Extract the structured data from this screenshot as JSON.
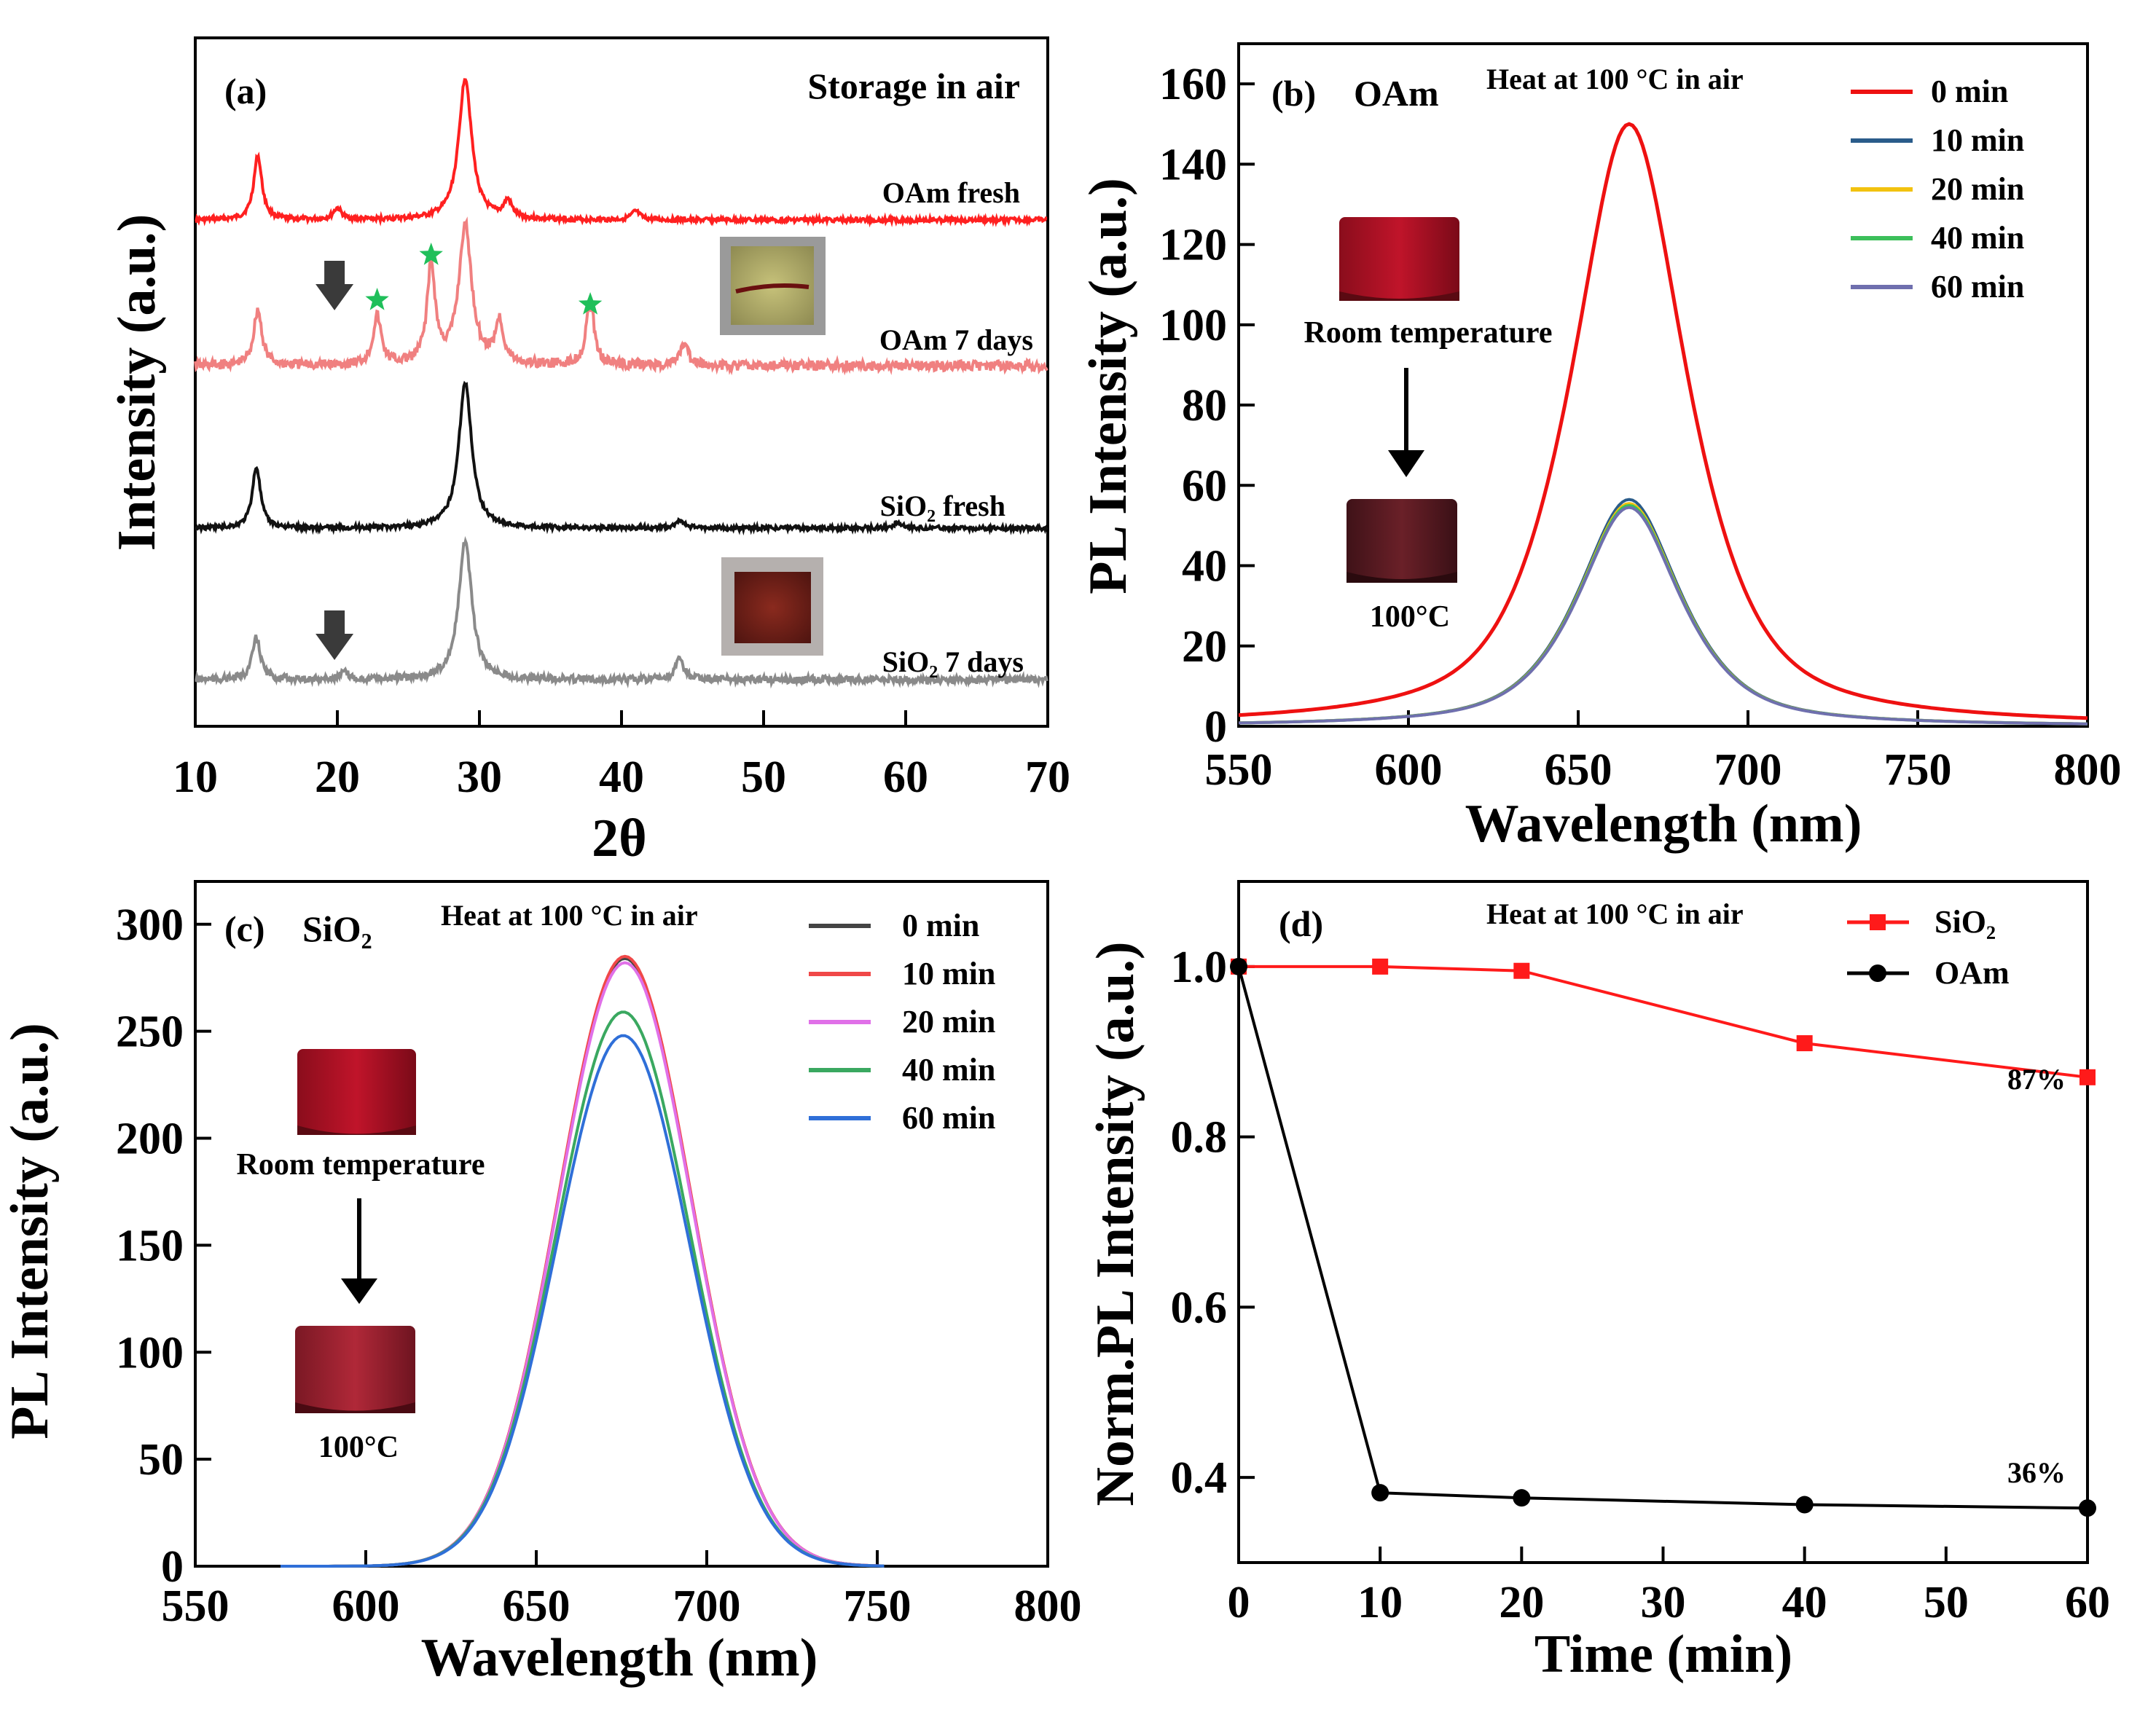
{
  "chart_data": [
    {
      "panel": "(a)",
      "type": "line",
      "title": "Storage in air",
      "xlabel": "2θ",
      "ylabel": "Intensity (a.u.)",
      "xlim": [
        10,
        70
      ],
      "xticks": [
        10,
        20,
        30,
        40,
        50,
        60,
        70
      ],
      "y_ticks_shown": false,
      "series": [
        {
          "name": "OAm fresh",
          "color": "#ff2020",
          "peaks": [
            [
              14.4,
              0.45
            ],
            [
              20.0,
              0.08
            ],
            [
              29.0,
              1.0
            ],
            [
              32.0,
              0.12
            ],
            [
              41.0,
              0.06
            ]
          ]
        },
        {
          "name": "OAm 7 days",
          "color": "#f08080",
          "peaks": [
            [
              14.4,
              0.4
            ],
            [
              22.8,
              0.35
            ],
            [
              26.6,
              0.7
            ],
            [
              29.0,
              1.0
            ],
            [
              31.4,
              0.3
            ],
            [
              37.8,
              0.45
            ],
            [
              44.4,
              0.15
            ]
          ]
        },
        {
          "name": "SiO₂ fresh",
          "color": "#111111",
          "peaks": [
            [
              14.3,
              0.42
            ],
            [
              29.0,
              1.0
            ],
            [
              44.1,
              0.05
            ],
            [
              59.5,
              0.04
            ]
          ]
        },
        {
          "name": "SiO₂ 7 days",
          "color": "#8a8a8a",
          "peaks": [
            [
              14.3,
              0.3
            ],
            [
              20.5,
              0.05
            ],
            [
              29.0,
              1.0
            ],
            [
              44.1,
              0.15
            ]
          ]
        }
      ],
      "annotations": {
        "star_positions_2theta": [
          22.8,
          26.6,
          37.8
        ],
        "arrows_2theta": [
          19.8,
          19.8
        ]
      }
    },
    {
      "panel": "(b)",
      "type": "line",
      "sample": "OAm",
      "title": "Heat at 100 °C in air",
      "xlabel": "Wavelength (nm)",
      "ylabel": "PL Intensity (a.u.)",
      "xlim": [
        550,
        800
      ],
      "ylim": [
        0,
        170
      ],
      "xticks": [
        550,
        600,
        650,
        700,
        750,
        800
      ],
      "yticks": [
        0,
        20,
        40,
        60,
        80,
        100,
        120,
        140,
        160
      ],
      "peak_nm": 665,
      "series": [
        {
          "name": "0 min",
          "color": "#ee1111",
          "peak": 150
        },
        {
          "name": "10 min",
          "color": "#2a5c8a",
          "peak": 56.5
        },
        {
          "name": "20 min",
          "color": "#f2c20f",
          "peak": 55.5
        },
        {
          "name": "40 min",
          "color": "#3cbf5a",
          "peak": 55
        },
        {
          "name": "60 min",
          "color": "#6f6fae",
          "peak": 54.5
        }
      ],
      "insets": {
        "top": "Room temperature",
        "bottom": "100°C"
      }
    },
    {
      "panel": "(c)",
      "type": "line",
      "sample": "SiO₂",
      "title": "Heat at 100 °C in air",
      "xlabel": "Wavelength (nm)",
      "ylabel": "PL Intensity (a.u.)",
      "xlim": [
        550,
        800
      ],
      "ylim": [
        0,
        320
      ],
      "xticks": [
        550,
        600,
        650,
        700,
        750,
        800
      ],
      "yticks": [
        0,
        50,
        100,
        150,
        200,
        250,
        300
      ],
      "peak_nm": 676,
      "series": [
        {
          "name": "0 min",
          "color": "#444444",
          "peak": 284
        },
        {
          "name": "10 min",
          "color": "#f04848",
          "peak": 285
        },
        {
          "name": "20 min",
          "color": "#e070e8",
          "peak": 282
        },
        {
          "name": "40 min",
          "color": "#3aa860",
          "peak": 259
        },
        {
          "name": "60 min",
          "color": "#2f6fd8",
          "peak": 248
        }
      ],
      "insets": {
        "top": "Room temperature",
        "bottom": "100°C"
      }
    },
    {
      "panel": "(d)",
      "type": "line",
      "title": "Heat at 100 °C in air",
      "xlabel": "Time (min)",
      "ylabel": "Norm.PL Intensity (a.u.)",
      "xlim": [
        0,
        60
      ],
      "ylim": [
        0.3,
        1.1
      ],
      "xticks": [
        0,
        10,
        20,
        30,
        40,
        50,
        60
      ],
      "yticks": [
        0.4,
        0.6,
        0.8,
        1.0
      ],
      "x": [
        0,
        10,
        20,
        40,
        60
      ],
      "series": [
        {
          "name": "SiO₂",
          "color": "#ff1a1a",
          "marker": "square",
          "values": [
            1.0,
            1.0,
            0.995,
            0.91,
            0.87
          ]
        },
        {
          "name": "OAm",
          "color": "#000000",
          "marker": "circle",
          "values": [
            1.0,
            0.382,
            0.376,
            0.368,
            0.364
          ]
        }
      ],
      "annotations": [
        "87%",
        "36%"
      ]
    }
  ]
}
